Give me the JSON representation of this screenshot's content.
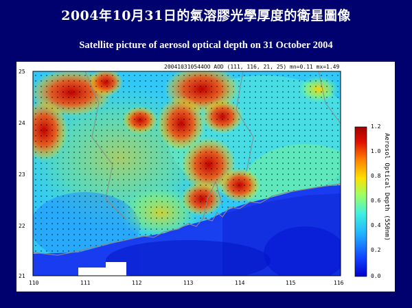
{
  "title_zh": "2004年10月31日的氣溶膠光學厚度的衛星圖像",
  "title_en": "Satellite picture of aerosol optical depth on 31 October 2004",
  "map": {
    "header_text": "200410310544OO AOD (111, 116, 21, 25) mn=0.11 mx=1.49",
    "x_ticks": [
      "110",
      "111",
      "112",
      "113",
      "114",
      "115",
      "116"
    ],
    "y_ticks": [
      "25",
      "24",
      "23",
      "22",
      "21"
    ],
    "lon_range": [
      110,
      116
    ],
    "lat_range": [
      21,
      25
    ]
  },
  "colorbar": {
    "label": "Aerosol Optical Depth (550nm)",
    "ticks": [
      "1.2",
      "1.0",
      "0.8",
      "0.6",
      "0.4",
      "0.2",
      "0.0"
    ],
    "range": [
      0.0,
      1.2
    ],
    "colors": [
      "#0000c8",
      "#1e64ff",
      "#32c8ff",
      "#64ffc8",
      "#c8ff32",
      "#ffd200",
      "#ff6400",
      "#dc0000",
      "#a00000"
    ]
  }
}
